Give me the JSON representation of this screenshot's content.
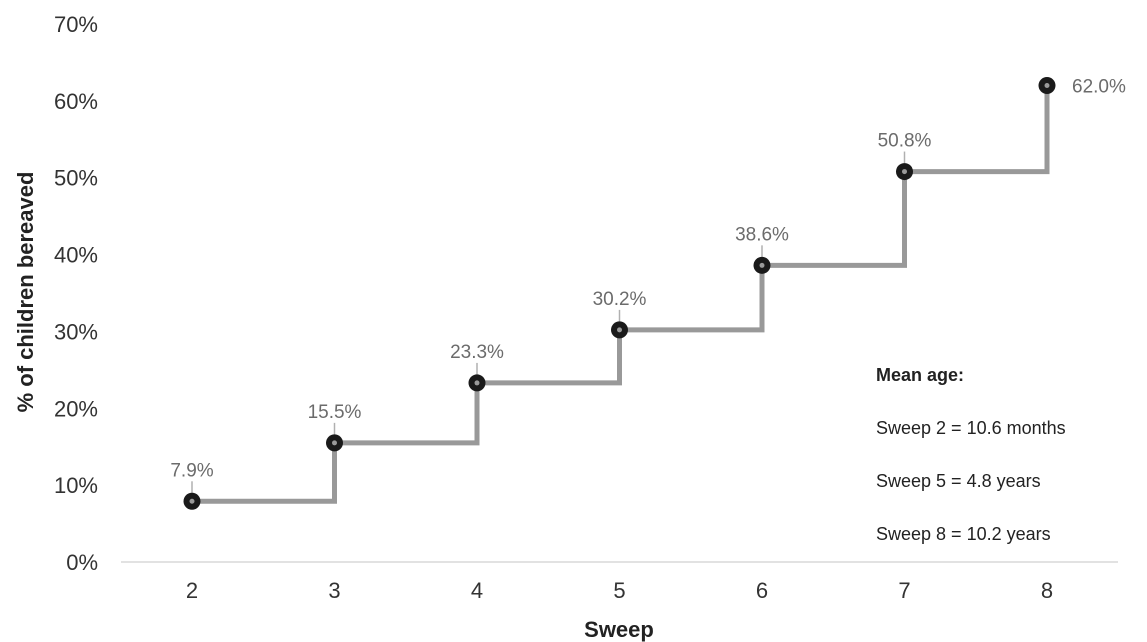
{
  "chart_data": {
    "type": "line",
    "step": true,
    "xlabel": "Sweep",
    "ylabel": "% of children bereaved",
    "categories": [
      "2",
      "3",
      "4",
      "5",
      "6",
      "7",
      "8"
    ],
    "x": [
      2,
      3,
      4,
      5,
      6,
      7,
      8
    ],
    "values": [
      7.9,
      15.5,
      23.3,
      30.2,
      38.6,
      50.8,
      62.0
    ],
    "data_labels": [
      "7.9%",
      "15.5%",
      "23.3%",
      "30.2%",
      "38.6%",
      "50.8%",
      "62.0%"
    ],
    "yticks": [
      0,
      10,
      20,
      30,
      40,
      50,
      60,
      70
    ],
    "ytick_labels": [
      "0%",
      "10%",
      "20%",
      "30%",
      "40%",
      "50%",
      "60%",
      "70%"
    ],
    "ylim": [
      0,
      70
    ],
    "grid": false,
    "legend": "none",
    "line_color": "#999999",
    "marker_color": "#1a1a1a"
  },
  "annotation": {
    "heading": "Mean age:",
    "lines": [
      "Sweep 2 = 10.6 months",
      "Sweep 5 = 4.8 years",
      "Sweep 8 = 10.2 years"
    ]
  }
}
